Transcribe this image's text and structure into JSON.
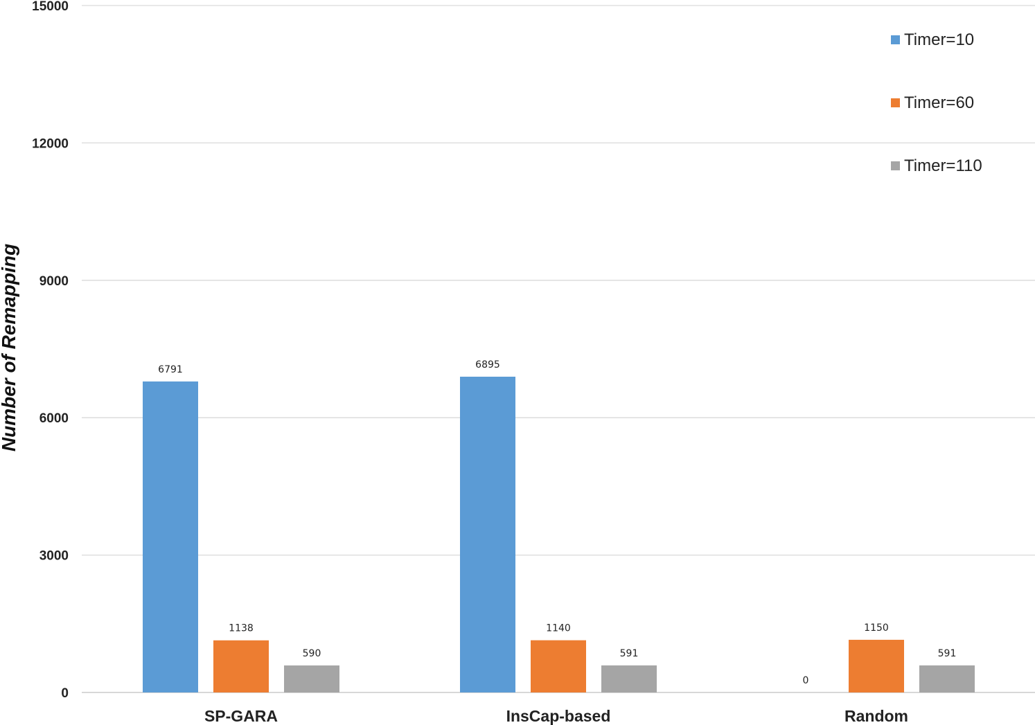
{
  "chart_data": {
    "type": "bar",
    "title": "",
    "xlabel": "",
    "ylabel": "Number of Remapping",
    "ylim": [
      0,
      15000
    ],
    "yticks": [
      0,
      3000,
      6000,
      9000,
      12000,
      15000
    ],
    "ytick_labels": [
      "0",
      "3000",
      "6000",
      "9000",
      "12000",
      "15000"
    ],
    "grid": true,
    "legend_position": "top-right",
    "categories": [
      "SP-GARA",
      "InsCap-based",
      "Random"
    ],
    "series": [
      {
        "name": "Timer=10",
        "color": "#5b9bd5",
        "values": [
          6791,
          6895,
          0
        ],
        "labels": [
          "6791",
          "6895",
          "0"
        ]
      },
      {
        "name": "Timer=60",
        "color": "#ed7d31",
        "values": [
          1138,
          1140,
          1150
        ],
        "labels": [
          "1138",
          "1140",
          "1150"
        ]
      },
      {
        "name": "Timer=110",
        "color": "#a5a5a5",
        "values": [
          590,
          591,
          591
        ],
        "labels": [
          "590",
          "591",
          "591"
        ]
      }
    ]
  }
}
